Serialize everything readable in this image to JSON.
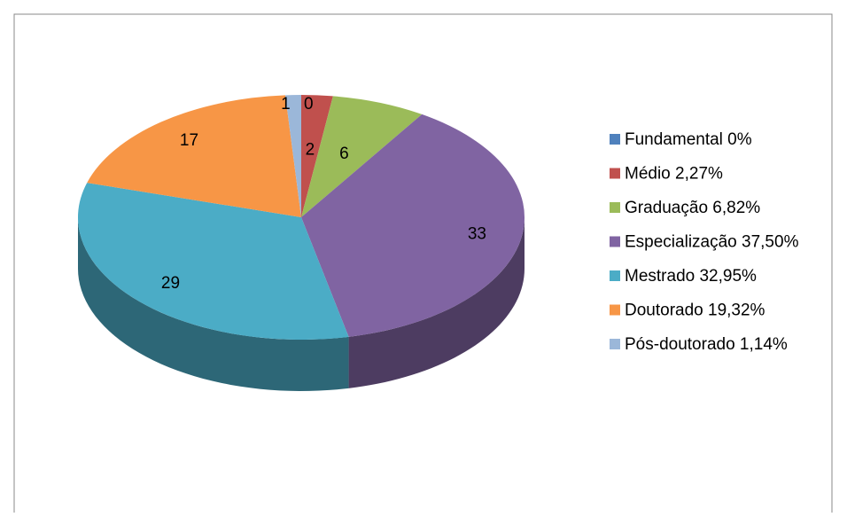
{
  "chart_data": {
    "type": "pie",
    "three_d": true,
    "categories": [
      "Fundamental 0%",
      "Médio 2,27%",
      "Graduação 6,82%",
      "Especialização 37,50%",
      "Mestrado 32,95%",
      "Doutorado 19,32%",
      "Pós-doutorado 1,14%"
    ],
    "values": [
      0,
      2,
      6,
      33,
      29,
      17,
      1
    ],
    "colors": [
      "#4f81bd",
      "#c0504d",
      "#9bbb59",
      "#8064a2",
      "#4bacc6",
      "#f79646",
      "#9bb7d9"
    ],
    "legend": "right"
  }
}
